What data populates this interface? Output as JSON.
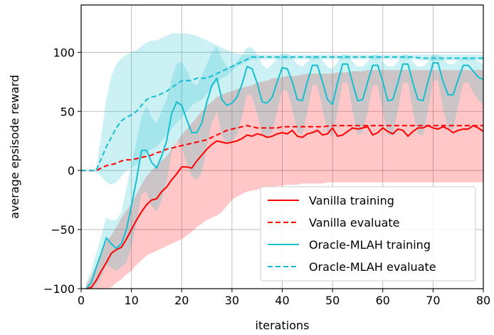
{
  "chart_data": {
    "type": "line",
    "xlabel": "iterations",
    "ylabel": "average epsisode reward",
    "xlim": [
      0,
      80
    ],
    "ylim": [
      -100,
      140
    ],
    "xticks": [
      "0",
      "10",
      "20",
      "30",
      "40",
      "50",
      "60",
      "70",
      "80"
    ],
    "yticks": [
      "−100",
      "−50",
      "0",
      "50",
      "100"
    ],
    "grid": true,
    "legend_position": "bottom-right",
    "series": [
      {
        "name": "Vanilla training",
        "color": "#ff0000",
        "style": "solid",
        "x": [
          1,
          2,
          3,
          4,
          5,
          6,
          7,
          8,
          9,
          10,
          11,
          12,
          13,
          14,
          15,
          16,
          17,
          18,
          19,
          20,
          21,
          22,
          23,
          24,
          25,
          26,
          27,
          28,
          29,
          30,
          31,
          32,
          33,
          34,
          35,
          36,
          37,
          38,
          39,
          40,
          41,
          42,
          43,
          44,
          45,
          46,
          47,
          48,
          49,
          50,
          51,
          52,
          53,
          54,
          55,
          56,
          57,
          58,
          59,
          60,
          61,
          62,
          63,
          64,
          65,
          66,
          67,
          68,
          69,
          70,
          71,
          72,
          73,
          74,
          75,
          76,
          77,
          78,
          79,
          80
        ],
        "y": [
          -100,
          -99,
          -93,
          -85,
          -78,
          -70,
          -67,
          -65,
          -58,
          -50,
          -42,
          -35,
          -29,
          -25,
          -24,
          -18,
          -14,
          -8,
          -3,
          3,
          3,
          2,
          8,
          13,
          18,
          22,
          25,
          24,
          23,
          24,
          25,
          27,
          30,
          29,
          31,
          30,
          28,
          29,
          31,
          32,
          31,
          34,
          29,
          28,
          31,
          32,
          34,
          30,
          31,
          36,
          29,
          30,
          33,
          36,
          35,
          36,
          37,
          30,
          32,
          36,
          33,
          31,
          35,
          34,
          29,
          33,
          36,
          36,
          38,
          36,
          35,
          37,
          35,
          32,
          34,
          35,
          35,
          38,
          36,
          33
        ],
        "band_upper": [
          -97,
          -90,
          -80,
          -70,
          -60,
          -55,
          -48,
          -40,
          -34,
          -28,
          -20,
          -12,
          -5,
          0,
          4,
          8,
          12,
          18,
          24,
          30,
          35,
          40,
          45,
          50,
          55,
          58,
          62,
          64,
          66,
          67,
          69,
          70,
          71,
          72,
          74,
          75,
          76,
          78,
          78,
          79,
          80,
          80,
          80,
          81,
          82,
          82,
          82,
          82,
          82,
          82,
          83,
          83,
          83,
          84,
          84,
          84,
          85,
          85,
          85,
          85,
          85,
          85,
          85,
          85,
          85,
          85,
          85,
          85,
          85,
          85,
          85,
          85,
          85,
          85,
          85,
          85,
          85,
          85,
          85,
          85
        ],
        "band_lower": [
          -100,
          -100,
          -100,
          -100,
          -100,
          -99,
          -95,
          -92,
          -88,
          -85,
          -80,
          -76,
          -72,
          -70,
          -68,
          -66,
          -64,
          -62,
          -60,
          -58,
          -55,
          -52,
          -48,
          -45,
          -42,
          -40,
          -38,
          -35,
          -30,
          -25,
          -22,
          -20,
          -18,
          -17,
          -16,
          -15,
          -14,
          -14,
          -13,
          -13,
          -12,
          -12,
          -12,
          -11,
          -11,
          -11,
          -11,
          -11,
          -10,
          -10,
          -10,
          -10,
          -10,
          -10,
          -10,
          -10,
          -10,
          -10,
          -10,
          -10,
          -10,
          -10,
          -10,
          -10,
          -10,
          -10,
          -10,
          -10,
          -10,
          -10,
          -10,
          -10,
          -10,
          -10,
          -10,
          -10,
          -10,
          -10,
          -10,
          -10
        ]
      },
      {
        "name": "Vanilla evaluate",
        "color": "#ff0000",
        "style": "dashed",
        "x": [
          0,
          1,
          2,
          3,
          4,
          5,
          6,
          7,
          8,
          9,
          10,
          11,
          12,
          13,
          14,
          15,
          16,
          17,
          18,
          19,
          20,
          21,
          22,
          23,
          24,
          25,
          26,
          27,
          28,
          29,
          30,
          31,
          32,
          33,
          34,
          35,
          36,
          37,
          38,
          39,
          40,
          42,
          44,
          46,
          48,
          50,
          52,
          54,
          56,
          58,
          60,
          62,
          64,
          66,
          68,
          70,
          72,
          74,
          76,
          78,
          80
        ],
        "y": [
          0,
          0,
          0,
          0,
          2,
          4,
          5,
          6,
          8,
          9,
          9,
          10,
          11,
          12,
          13,
          15,
          16,
          18,
          19,
          20,
          21,
          22,
          23,
          24,
          25,
          26,
          28,
          30,
          32,
          34,
          35,
          36,
          37,
          38,
          37,
          36,
          36,
          36,
          36,
          36,
          37,
          37,
          37,
          37,
          37,
          38,
          38,
          38,
          38,
          38,
          38,
          38,
          38,
          38,
          38,
          38,
          38,
          38,
          38,
          38,
          38
        ]
      },
      {
        "name": "Oracle-MLAH training",
        "color": "#17becf",
        "style": "solid",
        "x": [
          1,
          2,
          3,
          4,
          5,
          6,
          7,
          8,
          9,
          10,
          11,
          12,
          13,
          14,
          15,
          16,
          17,
          18,
          19,
          20,
          21,
          22,
          23,
          24,
          25,
          26,
          27,
          28,
          29,
          30,
          31,
          32,
          33,
          34,
          35,
          36,
          37,
          38,
          39,
          40,
          41,
          42,
          43,
          44,
          45,
          46,
          47,
          48,
          49,
          50,
          51,
          52,
          53,
          54,
          55,
          56,
          57,
          58,
          59,
          60,
          61,
          62,
          63,
          64,
          65,
          66,
          67,
          68,
          69,
          70,
          71,
          72,
          73,
          74,
          75,
          76,
          77,
          78,
          79,
          80
        ],
        "y": [
          -100,
          -95,
          -82,
          -70,
          -57,
          -62,
          -66,
          -62,
          -50,
          -30,
          -8,
          17,
          17,
          7,
          2,
          12,
          25,
          48,
          58,
          55,
          43,
          32,
          32,
          40,
          58,
          72,
          78,
          60,
          55,
          57,
          62,
          73,
          88,
          86,
          74,
          58,
          57,
          62,
          75,
          87,
          86,
          75,
          60,
          59,
          75,
          89,
          89,
          75,
          60,
          56,
          74,
          90,
          90,
          74,
          59,
          60,
          75,
          89,
          89,
          75,
          59,
          60,
          74,
          90,
          90,
          74,
          60,
          59,
          75,
          91,
          91,
          75,
          64,
          64,
          77,
          89,
          89,
          84,
          79,
          77
        ],
        "band_upper": [
          -95,
          -85,
          -70,
          -55,
          -40,
          -42,
          -42,
          -35,
          -15,
          5,
          25,
          45,
          55,
          45,
          40,
          50,
          60,
          78,
          90,
          92,
          85,
          75,
          72,
          80,
          90,
          100,
          105,
          95,
          88,
          88,
          92,
          98,
          104,
          104,
          98,
          90,
          86,
          90,
          95,
          99,
          99,
          95,
          90,
          88,
          92,
          97,
          97,
          93,
          88,
          86,
          92,
          98,
          98,
          92,
          88,
          88,
          92,
          98,
          98,
          92,
          88,
          88,
          92,
          98,
          98,
          92,
          88,
          88,
          92,
          98,
          98,
          94,
          90,
          90,
          93,
          96,
          96,
          94,
          92,
          90
        ],
        "band_lower": [
          -100,
          -100,
          -98,
          -90,
          -80,
          -82,
          -85,
          -82,
          -78,
          -65,
          -45,
          -20,
          -18,
          -30,
          -35,
          -25,
          -10,
          15,
          25,
          20,
          5,
          -5,
          -8,
          -2,
          20,
          40,
          50,
          30,
          22,
          25,
          30,
          45,
          65,
          62,
          48,
          30,
          28,
          32,
          50,
          68,
          67,
          52,
          32,
          30,
          50,
          72,
          72,
          52,
          32,
          28,
          50,
          74,
          74,
          50,
          30,
          32,
          50,
          72,
          72,
          50,
          30,
          30,
          50,
          74,
          74,
          50,
          30,
          30,
          50,
          76,
          76,
          52,
          35,
          35,
          55,
          74,
          74,
          66,
          60,
          55
        ]
      },
      {
        "name": "Oracle-MLAH evaluate",
        "color": "#17becf",
        "style": "dashed",
        "x": [
          0,
          1,
          2,
          3,
          4,
          5,
          6,
          7,
          8,
          9,
          10,
          11,
          12,
          13,
          14,
          15,
          16,
          17,
          18,
          19,
          20,
          21,
          22,
          23,
          24,
          25,
          26,
          27,
          28,
          29,
          30,
          31,
          32,
          33,
          34,
          35,
          36,
          37,
          38,
          40,
          42,
          44,
          46,
          48,
          50,
          52,
          54,
          56,
          58,
          60,
          62,
          64,
          66,
          68,
          70,
          72,
          74,
          76,
          78,
          80
        ],
        "y": [
          0,
          0,
          0,
          0,
          10,
          20,
          28,
          36,
          42,
          45,
          47,
          50,
          55,
          60,
          62,
          63,
          65,
          67,
          70,
          73,
          76,
          76,
          76,
          78,
          78,
          78,
          80,
          82,
          84,
          86,
          88,
          90,
          92,
          94,
          96,
          96,
          96,
          96,
          96,
          96,
          96,
          96,
          96,
          96,
          96,
          96,
          96,
          96,
          96,
          96,
          96,
          96,
          96,
          95,
          95,
          95,
          95,
          95,
          95,
          95
        ],
        "band_upper": [
          0,
          0,
          0,
          2,
          30,
          60,
          80,
          90,
          95,
          98,
          100,
          102,
          105,
          108,
          110,
          110,
          112,
          114,
          116,
          116,
          116,
          116,
          115,
          114,
          112,
          110,
          108,
          106,
          104,
          102,
          100,
          99,
          98,
          98,
          98,
          98,
          98,
          98,
          98,
          98,
          98,
          98,
          98,
          98,
          98,
          98,
          98,
          98,
          98,
          98,
          98,
          98,
          98,
          98,
          98,
          98,
          98,
          98,
          98,
          98
        ],
        "band_lower": [
          0,
          0,
          0,
          -2,
          -5,
          -10,
          -12,
          -10,
          -5,
          0,
          2,
          5,
          10,
          15,
          18,
          20,
          25,
          30,
          35,
          40,
          45,
          50,
          55,
          58,
          60,
          65,
          70,
          75,
          78,
          80,
          84,
          88,
          90,
          92,
          94,
          94,
          94,
          94,
          94,
          94,
          94,
          94,
          94,
          94,
          94,
          94,
          94,
          94,
          94,
          94,
          94,
          94,
          94,
          93,
          93,
          93,
          93,
          93,
          93,
          93
        ]
      }
    ]
  }
}
